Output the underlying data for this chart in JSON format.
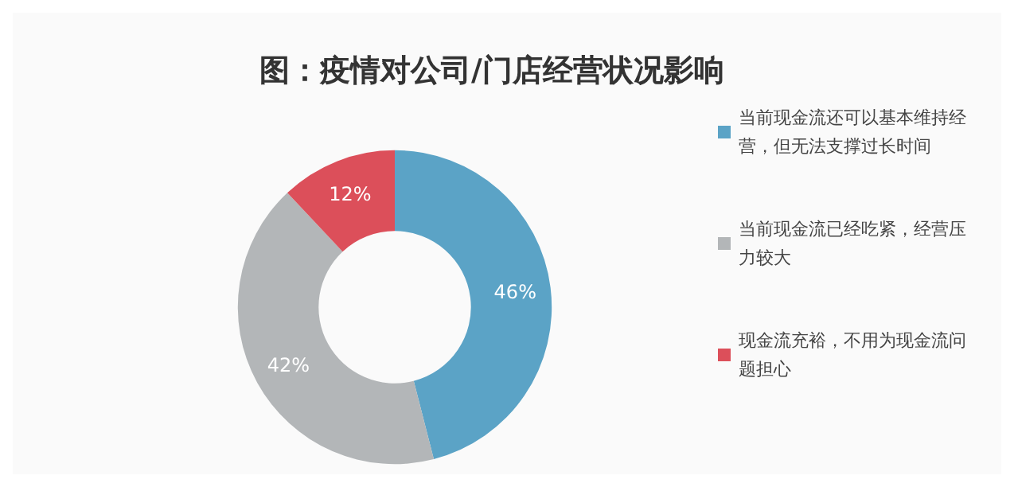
{
  "chart_data": {
    "type": "donut",
    "title": "图：疫情对公司/门店经营状况影响",
    "categories": [
      "当前现金流还可以基本维持经营，但无法支撑过长时间",
      "当前现金流已经吃紧，经营压力较大",
      "现金流充裕，不用为现金流问题担心"
    ],
    "values": [
      46,
      42,
      12
    ],
    "colors": [
      "#5ba3c6",
      "#b3b6b8",
      "#dc4f5a"
    ],
    "value_labels": [
      "46%",
      "42%",
      "12%"
    ],
    "legend": "right"
  }
}
